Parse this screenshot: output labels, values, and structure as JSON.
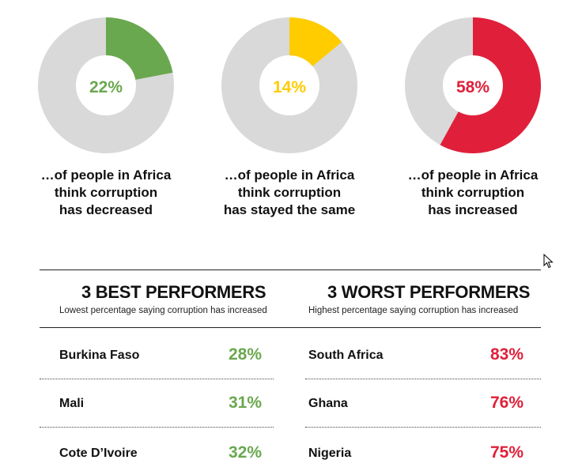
{
  "colors": {
    "track": "#d9d9d9",
    "green": "#6aa84f",
    "yellow": "#ffcc00",
    "red": "#e0203a"
  },
  "chart_data": [
    {
      "type": "pie",
      "variant": "donut",
      "value": 22,
      "label": "22%",
      "color": "#6aa84f",
      "caption": [
        "…of people in Africa",
        "think corruption",
        "has decreased"
      ]
    },
    {
      "type": "pie",
      "variant": "donut",
      "value": 14,
      "label": "14%",
      "color": "#ffcc00",
      "caption": [
        "…of people in Africa",
        "think corruption",
        "has stayed the same"
      ]
    },
    {
      "type": "pie",
      "variant": "donut",
      "value": 58,
      "label": "58%",
      "color": "#e0203a",
      "caption": [
        "…of people in Africa",
        "think corruption",
        "has increased"
      ]
    }
  ],
  "best": {
    "title": "3 BEST PERFORMERS",
    "subtitle": "Lowest percentage saying corruption has increased",
    "color": "#6aa84f",
    "rows": [
      {
        "country": "Burkina Faso",
        "value": "28%"
      },
      {
        "country": "Mali",
        "value": "31%"
      },
      {
        "country": "Cote D’Ivoire",
        "value": "32%"
      }
    ]
  },
  "worst": {
    "title": "3 WORST PERFORMERS",
    "subtitle": "Highest percentage saying corruption has increased",
    "color": "#e0203a",
    "rows": [
      {
        "country": "South Africa",
        "value": "83%"
      },
      {
        "country": "Ghana",
        "value": "76%"
      },
      {
        "country": "Nigeria",
        "value": "75%"
      }
    ]
  }
}
